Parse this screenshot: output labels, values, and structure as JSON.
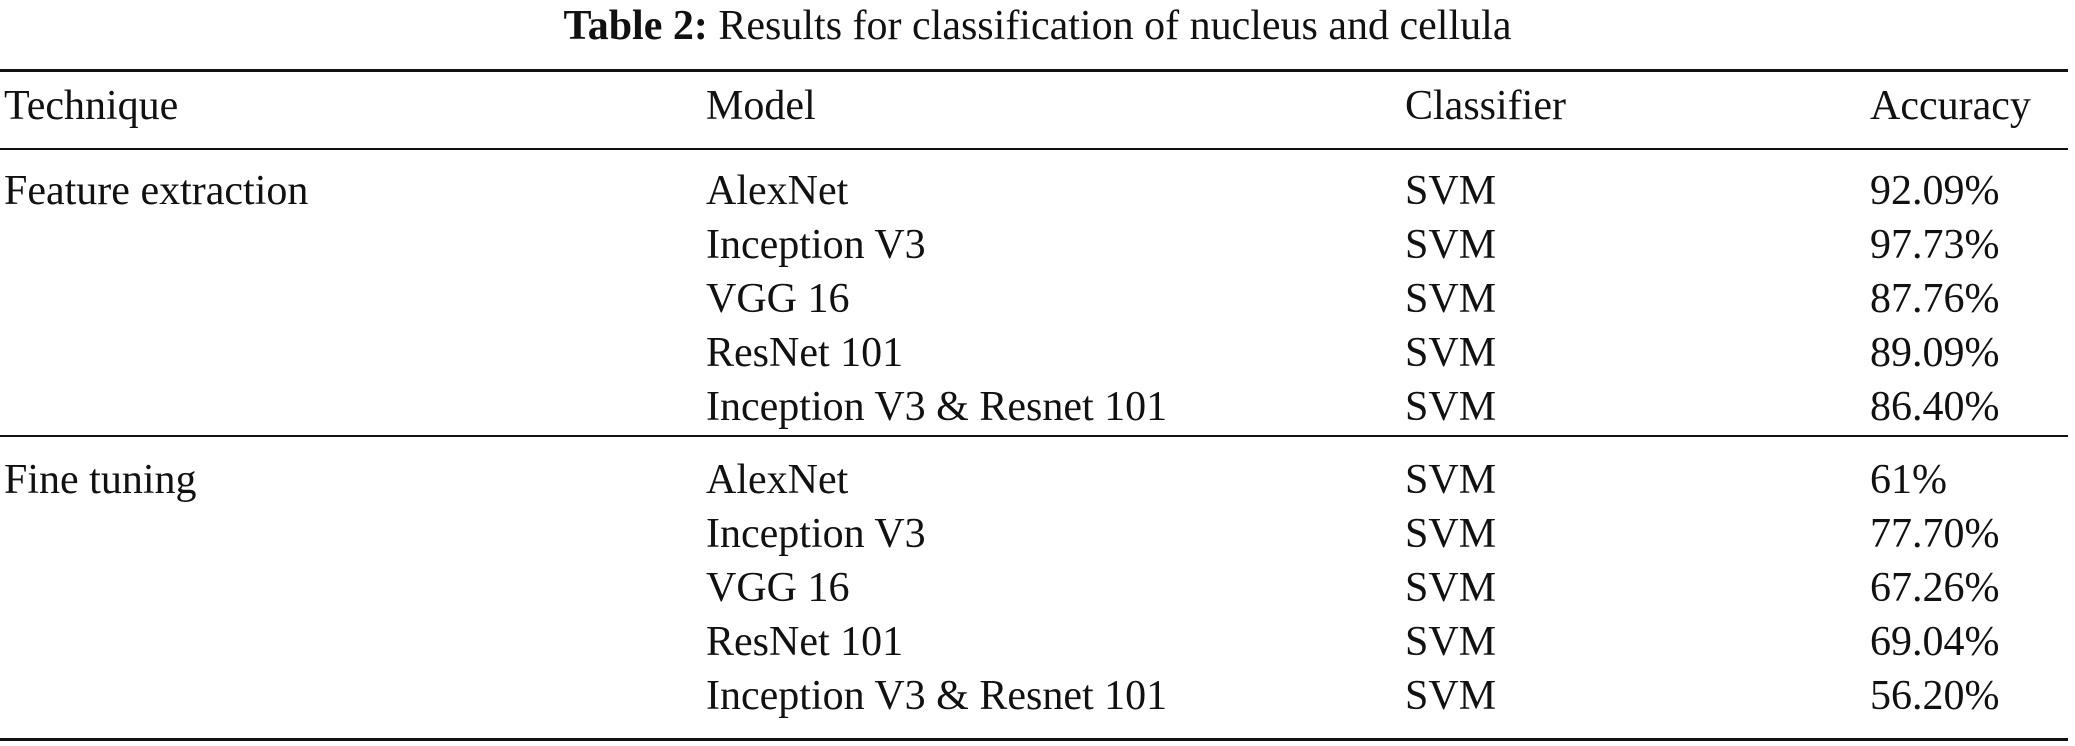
{
  "caption": {
    "label": "Table 2:",
    "text": "Results for classification of nucleus and cellula"
  },
  "table": {
    "headers": {
      "technique": "Technique",
      "model": "Model",
      "classifier": "Classifier",
      "accuracy": "Accuracy"
    },
    "groups": [
      {
        "technique": "Feature extraction",
        "rows": [
          {
            "model": "AlexNet",
            "classifier": "SVM",
            "accuracy": "92.09%"
          },
          {
            "model": "Inception V3",
            "classifier": "SVM",
            "accuracy": "97.73%"
          },
          {
            "model": "VGG 16",
            "classifier": "SVM",
            "accuracy": "87.76%"
          },
          {
            "model": "ResNet 101",
            "classifier": "SVM",
            "accuracy": "89.09%"
          },
          {
            "model": "Inception V3 & Resnet 101",
            "classifier": "SVM",
            "accuracy": "86.40%"
          }
        ]
      },
      {
        "technique": "Fine tuning",
        "rows": [
          {
            "model": "AlexNet",
            "classifier": "SVM",
            "accuracy": "61%"
          },
          {
            "model": "Inception V3",
            "classifier": "SVM",
            "accuracy": "77.70%"
          },
          {
            "model": "VGG 16",
            "classifier": "SVM",
            "accuracy": "67.26%"
          },
          {
            "model": "ResNet 101",
            "classifier": "SVM",
            "accuracy": "69.04%"
          },
          {
            "model": "Inception V3 & Resnet 101",
            "classifier": "SVM",
            "accuracy": "56.20%"
          }
        ]
      }
    ]
  }
}
